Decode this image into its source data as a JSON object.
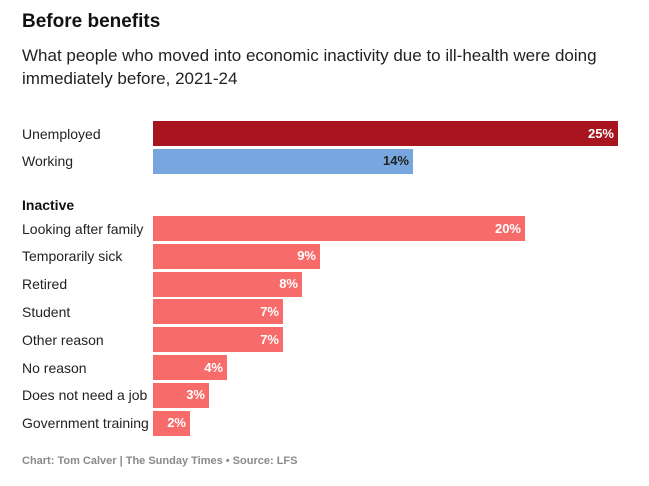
{
  "title": "Before benefits",
  "subtitle": "What people who moved into economic inactivity due to ill-health were doing immediately before, 2021-24",
  "footer": "Chart: Tom Calver | The Sunday Times • Source: LFS",
  "colors": {
    "unemployed": "#a8151f",
    "working": "#78a7e0",
    "inactive": "#f76b6b",
    "label_light": "#ffffff",
    "label_dark": "#222222"
  },
  "chart_data": {
    "type": "bar",
    "orientation": "horizontal",
    "title": "Before benefits",
    "subtitle": "What people who moved into economic inactivity due to ill-health were doing immediately before, 2021-24",
    "unit": "%",
    "xlim": [
      0,
      25
    ],
    "groups": [
      {
        "name": "",
        "items": [
          {
            "label": "Unemployed",
            "value": 25,
            "display": "25%",
            "color_key": "unemployed",
            "label_color": "label_light"
          },
          {
            "label": "Working",
            "value": 14,
            "display": "14%",
            "color_key": "working",
            "label_color": "label_dark"
          }
        ]
      },
      {
        "name": "Inactive",
        "items": [
          {
            "label": "Looking after family",
            "value": 20,
            "display": "20%",
            "color_key": "inactive",
            "label_color": "label_light"
          },
          {
            "label": "Temporarily sick",
            "value": 9,
            "display": "9%",
            "color_key": "inactive",
            "label_color": "label_light"
          },
          {
            "label": "Retired",
            "value": 8,
            "display": "8%",
            "color_key": "inactive",
            "label_color": "label_light"
          },
          {
            "label": "Student",
            "value": 7,
            "display": "7%",
            "color_key": "inactive",
            "label_color": "label_light"
          },
          {
            "label": "Other reason",
            "value": 7,
            "display": "7%",
            "color_key": "inactive",
            "label_color": "label_light"
          },
          {
            "label": "No reason",
            "value": 4,
            "display": "4%",
            "color_key": "inactive",
            "label_color": "label_light"
          },
          {
            "label": "Does not need a job",
            "value": 3,
            "display": "3%",
            "color_key": "inactive",
            "label_color": "label_light"
          },
          {
            "label": "Government training",
            "value": 2,
            "display": "2%",
            "color_key": "inactive",
            "label_color": "label_light"
          }
        ]
      }
    ]
  }
}
